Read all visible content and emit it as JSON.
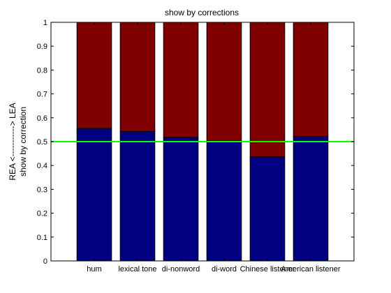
{
  "chart_data": {
    "type": "bar",
    "stacked": true,
    "title": "show by corrections",
    "ylabel_line1": "REA <-----------> LEA",
    "ylabel_line2": "show by correction",
    "xlabel": "",
    "categories": [
      "hum",
      "lexical tone",
      "di-nonword",
      "di-word",
      "Chinese listener",
      "American listener"
    ],
    "series": [
      {
        "values": [
          0.555,
          0.543,
          0.518,
          0.503,
          0.436,
          0.521
        ],
        "color": "#000080"
      },
      {
        "values": [
          0.445,
          0.457,
          0.482,
          0.497,
          0.564,
          0.479
        ],
        "color": "#800000"
      }
    ],
    "ylim": [
      0,
      1
    ],
    "yticks": [
      "0",
      "0.1",
      "0.2",
      "0.3",
      "0.4",
      "0.5",
      "0.6",
      "0.7",
      "0.8",
      "0.9",
      "1"
    ],
    "reference_line": {
      "y": 0.5,
      "color": "#00ff00"
    },
    "xlim": [
      0,
      7
    ],
    "grid": false,
    "legend": "none"
  }
}
